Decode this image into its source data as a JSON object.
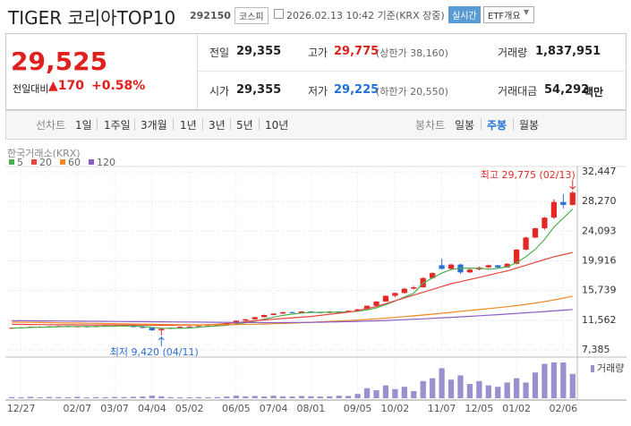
{
  "header": {
    "name": "TIGER 코리아TOP10",
    "code": "292150",
    "market": "코스피",
    "timestamp": "2026.02.13 10:42 기준(KRX 장중)",
    "realtime": "실시간",
    "menu": "ETF개요"
  },
  "quote": {
    "price": "29,525",
    "change_label": "전일대비",
    "change": "▲170",
    "change_pct": "+0.58%",
    "stats": [
      {
        "label": "전일",
        "value": "29,355"
      },
      {
        "label": "고가",
        "value": "29,775",
        "note": "(상한가 38,160)"
      },
      {
        "label": "거래량",
        "value": "1,837,951"
      },
      {
        "label": "시가",
        "value": "29,355"
      },
      {
        "label": "저가",
        "value": "29,225",
        "note": "(하한가 20,550)"
      },
      {
        "label": "거래대금",
        "value": "54,292",
        "note": "백만"
      }
    ]
  },
  "tabs": {
    "line": [
      "선차트",
      "1일",
      "1주일",
      "3개월",
      "1년",
      "3년",
      "5년",
      "10년"
    ],
    "candle": [
      "봉차트",
      "일봉",
      "주봉",
      "월봉"
    ]
  },
  "chart_data": {
    "type": "candlestick",
    "source": "한국거래소(KRX)",
    "categories": [
      null,
      "12/27",
      null,
      null,
      null,
      null,
      null,
      "02/07",
      null,
      null,
      null,
      "03/07",
      null,
      null,
      null,
      "04/04",
      null,
      null,
      null,
      "05/02",
      null,
      null,
      null,
      null,
      "06/05",
      null,
      null,
      null,
      "07/04",
      null,
      null,
      null,
      "08/01",
      null,
      null,
      null,
      null,
      "09/05",
      null,
      null,
      null,
      "10/02",
      null,
      null,
      null,
      null,
      "11/07",
      null,
      null,
      null,
      "12/05",
      null,
      null,
      null,
      "01/02",
      null,
      null,
      null,
      null,
      "02/06",
      null
    ],
    "open": [
      10400,
      10500,
      10550,
      10650,
      10600,
      10700,
      10750,
      10650,
      10700,
      10600,
      10750,
      10800,
      10700,
      10850,
      10600,
      10500,
      10150,
      10350,
      10500,
      10650,
      10700,
      10750,
      10800,
      10900,
      11100,
      11500,
      11700,
      12000,
      12300,
      12500,
      12700,
      12600,
      12800,
      12700,
      12600,
      12800,
      12700,
      12900,
      13100,
      13600,
      14200,
      15000,
      15400,
      16000,
      16200,
      17500,
      19300,
      18800,
      19400,
      18300,
      18700,
      19000,
      19300,
      19000,
      19500,
      21500,
      23200,
      24500,
      26000,
      28200,
      27800
    ],
    "high": [
      10560,
      10620,
      10700,
      10720,
      10760,
      10820,
      10780,
      10760,
      10740,
      10800,
      10880,
      10850,
      10900,
      10880,
      10650,
      10550,
      10400,
      10560,
      10700,
      10760,
      10800,
      10850,
      10950,
      11150,
      11550,
      11750,
      12050,
      12350,
      12550,
      12750,
      12780,
      12850,
      12850,
      12750,
      12850,
      12850,
      12950,
      13150,
      13650,
      14250,
      15050,
      15450,
      16100,
      16400,
      17600,
      18300,
      20200,
      19500,
      19500,
      18800,
      19100,
      19400,
      19350,
      19600,
      21600,
      23300,
      24600,
      26100,
      28600,
      29300,
      29775
    ],
    "low": [
      10350,
      10450,
      10500,
      10550,
      10560,
      10650,
      10600,
      10600,
      10550,
      10580,
      10700,
      10650,
      10680,
      10550,
      10450,
      10050,
      9420,
      10300,
      10450,
      10600,
      10650,
      10700,
      10750,
      10850,
      11050,
      11450,
      11650,
      11950,
      12250,
      12450,
      12550,
      12550,
      12650,
      12550,
      12550,
      12650,
      12650,
      12850,
      13050,
      13550,
      14150,
      14800,
      15300,
      15900,
      16150,
      17400,
      18700,
      18700,
      18100,
      18200,
      18600,
      18900,
      18900,
      18950,
      19400,
      21400,
      23100,
      24300,
      25800,
      27300,
      27700
    ],
    "close": [
      10500,
      10550,
      10650,
      10600,
      10700,
      10750,
      10650,
      10700,
      10600,
      10750,
      10800,
      10700,
      10850,
      10600,
      10500,
      10150,
      10350,
      10500,
      10650,
      10700,
      10750,
      10800,
      10900,
      11100,
      11500,
      11700,
      12000,
      12300,
      12500,
      12700,
      12600,
      12800,
      12700,
      12600,
      12800,
      12700,
      12900,
      13100,
      13600,
      14200,
      15000,
      15400,
      16000,
      16200,
      17500,
      18200,
      18800,
      19400,
      18300,
      18700,
      19000,
      19300,
      19000,
      19500,
      21500,
      23200,
      24500,
      26000,
      28200,
      27800,
      29525
    ],
    "up_color": "#e22926",
    "down_color": "#2a6fd4",
    "ylim": [
      7385,
      32447
    ],
    "yticks": [
      {
        "value": 7385,
        "label": "7,385"
      },
      {
        "value": 11562,
        "label": "11,562"
      },
      {
        "value": 15739,
        "label": "15,739"
      },
      {
        "value": 19916,
        "label": "19,916"
      },
      {
        "value": 24093,
        "label": "24,093"
      },
      {
        "value": 28270,
        "label": "28,270"
      },
      {
        "value": 32447,
        "label": "32,447"
      }
    ],
    "grid": true,
    "series": [
      {
        "name": "5",
        "color": "#4cb050",
        "values": [
          10450,
          10500,
          10550,
          10580,
          10600,
          10650,
          10670,
          10690,
          10680,
          10690,
          10700,
          10720,
          10760,
          10740,
          10690,
          10560,
          10450,
          10420,
          10430,
          10470,
          10590,
          10680,
          10760,
          10850,
          11010,
          11200,
          11440,
          11720,
          12000,
          12240,
          12420,
          12580,
          12660,
          12680,
          12700,
          12680,
          12740,
          12820,
          13020,
          13300,
          13760,
          14260,
          14840,
          15360,
          16800,
          17500,
          18200,
          18700,
          18900,
          18900,
          18900,
          18740,
          18860,
          19100,
          19660,
          20500,
          21540,
          22940,
          24680,
          25940,
          27210
        ]
      },
      {
        "name": "20",
        "color": "#e8453c",
        "values": [
          11000,
          10980,
          10960,
          10950,
          10940,
          10930,
          10920,
          10910,
          10900,
          10900,
          10900,
          10900,
          10890,
          10880,
          10870,
          10860,
          10860,
          10860,
          10870,
          10880,
          10900,
          10950,
          11000,
          11100,
          11200,
          11350,
          11500,
          11600,
          11700,
          11800,
          11900,
          12000,
          12100,
          12250,
          12400,
          12550,
          12700,
          12900,
          13200,
          13500,
          13900,
          14300,
          14700,
          15100,
          15500,
          15900,
          16300,
          16700,
          17000,
          17300,
          17600,
          17900,
          18200,
          18500,
          18900,
          19300,
          19700,
          20100,
          20500,
          20800,
          21100
        ]
      },
      {
        "name": "60",
        "color": "#f08a24",
        "values": [
          11300,
          11280,
          11260,
          11240,
          11220,
          11200,
          11180,
          11160,
          11140,
          11120,
          11100,
          11080,
          11060,
          11040,
          11020,
          11000,
          10980,
          10960,
          10940,
          10920,
          10910,
          10910,
          10920,
          10930,
          10950,
          10970,
          11000,
          11030,
          11070,
          11110,
          11160,
          11220,
          11280,
          11340,
          11400,
          11460,
          11520,
          11590,
          11670,
          11760,
          11860,
          11960,
          12070,
          12180,
          12300,
          12420,
          12550,
          12680,
          12810,
          12940,
          13070,
          13200,
          13330,
          13470,
          13620,
          13790,
          13980,
          14190,
          14420,
          14680,
          14950
        ]
      },
      {
        "name": "120",
        "color": "#8a5cc8",
        "values": [
          11500,
          11490,
          11480,
          11470,
          11460,
          11450,
          11440,
          11430,
          11420,
          11410,
          11400,
          11390,
          11380,
          11370,
          11360,
          11350,
          11340,
          11330,
          11320,
          11310,
          11300,
          11290,
          11280,
          11270,
          11260,
          11250,
          11240,
          11230,
          11230,
          11230,
          11240,
          11250,
          11270,
          11290,
          11310,
          11340,
          11370,
          11400,
          11440,
          11480,
          11530,
          11580,
          11640,
          11700,
          11760,
          11830,
          11900,
          11970,
          12040,
          12110,
          12190,
          12270,
          12350,
          12430,
          12520,
          12610,
          12700,
          12790,
          12880,
          12980,
          13080
        ]
      }
    ],
    "volume": {
      "name": "거래량",
      "color": "#9b8fcf",
      "values": [
        400000,
        350000,
        500000,
        300000,
        450000,
        400000,
        350000,
        500000,
        300000,
        400000,
        350000,
        450000,
        400000,
        500000,
        600000,
        900000,
        700000,
        400000,
        350000,
        300000,
        400000,
        350000,
        400000,
        600000,
        900000,
        700000,
        800000,
        600000,
        900000,
        700000,
        600000,
        800000,
        700000,
        600000,
        700000,
        900000,
        800000,
        1500000,
        3500000,
        2800000,
        4500000,
        3200000,
        4000000,
        2500000,
        6000000,
        7000000,
        10500000,
        6500000,
        8000000,
        5000000,
        6000000,
        4500000,
        4000000,
        5500000,
        7000000,
        5500000,
        9000000,
        12000000,
        12500000,
        12500000,
        8500000
      ]
    },
    "high_label": {
      "text": "최고 29,775 (02/13)",
      "value": 29775,
      "color": "#e22926"
    },
    "low_label": {
      "text": "최저 9,420 (04/11)",
      "value": 9420,
      "color": "#2a6fd4"
    }
  }
}
